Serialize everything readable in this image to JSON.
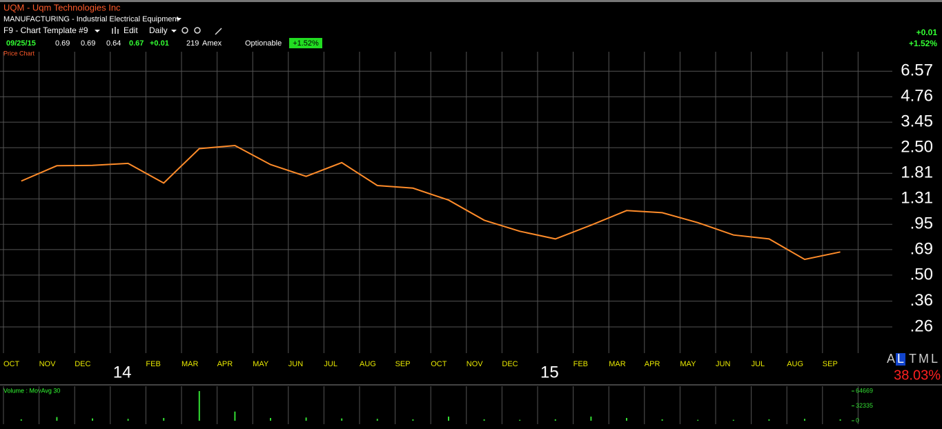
{
  "header": {
    "symbol_title": "UQM - Uqm Technologies Inc",
    "sector": "MANUFACTURING - Industrial Electrical Equipment",
    "template": "F9 - Chart Template #9",
    "edit": "Edit",
    "period": "Daily",
    "quote": {
      "date": "09/25/15",
      "open": "0.69",
      "high": "0.69",
      "low": "0.64",
      "close": "0.67",
      "change": "+0.01",
      "volume": "219",
      "exchange": "Amex",
      "optionable": "Optionable",
      "change_pct": "+1.52%"
    },
    "right_change": "+0.01",
    "right_change_pct": "+1.52%",
    "pane_label": "Price Chart"
  },
  "footer": {
    "letters": [
      "A",
      "L",
      "T",
      "M",
      "L"
    ],
    "percent": "38.03%",
    "volume_label": "Volume : MovAvg 30"
  },
  "chart_data": [
    {
      "type": "line",
      "log_scale": true,
      "grid": true,
      "categories": [
        "OCT",
        "NOV",
        "DEC",
        "14",
        "FEB",
        "MAR",
        "APR",
        "MAY",
        "JUN",
        "JUL",
        "AUG",
        "SEP",
        "OCT",
        "NOV",
        "DEC",
        "15",
        "FEB",
        "MAR",
        "APR",
        "MAY",
        "JUN",
        "JUL",
        "AUG",
        "SEP"
      ],
      "series": [
        {
          "name": "UQM",
          "color": "#ff8c2a",
          "values": [
            1.64,
            1.99,
            2.0,
            2.05,
            1.6,
            2.47,
            2.57,
            2.02,
            1.74,
            2.07,
            1.55,
            1.5,
            1.29,
            1.0,
            0.87,
            0.79,
            0.94,
            1.13,
            1.1,
            0.97,
            0.83,
            0.79,
            0.61,
            0.67
          ]
        }
      ],
      "ylim": [
        0.19,
        8.4
      ],
      "yticks": [
        {
          "value": 6.57,
          "label": "6.57"
        },
        {
          "value": 4.76,
          "label": "4.76"
        },
        {
          "value": 3.45,
          "label": "3.45"
        },
        {
          "value": 2.5,
          "label": "2.50"
        },
        {
          "value": 1.81,
          "label": "1.81"
        },
        {
          "value": 1.31,
          "label": "1.31"
        },
        {
          "value": 0.95,
          "label": ".95"
        },
        {
          "value": 0.69,
          "label": ".69"
        },
        {
          "value": 0.5,
          "label": ".50"
        },
        {
          "value": 0.36,
          "label": ".36"
        },
        {
          "value": 0.26,
          "label": ".26"
        }
      ]
    },
    {
      "type": "bar",
      "color": "#33dd33",
      "values": [
        3000,
        8000,
        5000,
        4000,
        6000,
        64669,
        20000,
        6000,
        7000,
        5000,
        4000,
        3000,
        9000,
        3000,
        2000,
        3000,
        9000,
        6000,
        3000,
        2000,
        2000,
        3000,
        4000,
        3000
      ],
      "ylim": [
        0,
        64669
      ],
      "yticks": [
        64669,
        32335,
        0
      ]
    }
  ]
}
